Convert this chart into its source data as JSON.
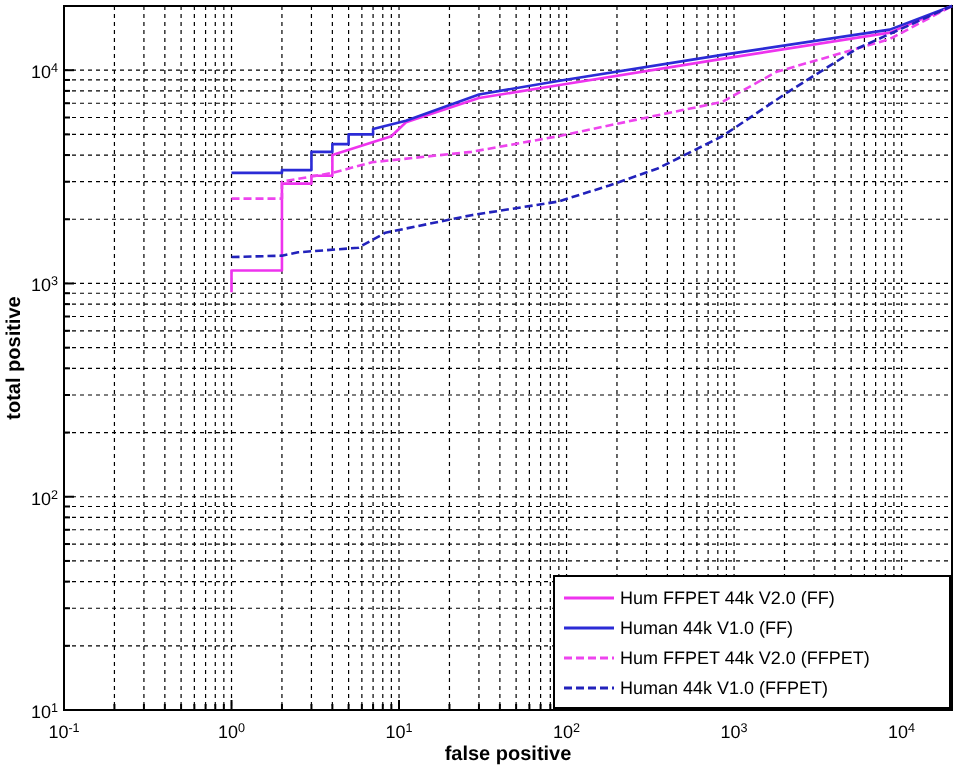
{
  "chart_data": {
    "type": "line",
    "xlabel": "false positive",
    "ylabel": "total positive",
    "log": "xy",
    "grid": true,
    "legend": "bottom right",
    "xlim": [
      0.1,
      20000
    ],
    "ylim": [
      10,
      20000
    ],
    "xticks": [
      {
        "value": 0.1,
        "label": "10$^{-1}$"
      },
      {
        "value": 0.2,
        "label": null
      },
      {
        "value": 0.3,
        "label": null
      },
      {
        "value": 0.4,
        "label": null
      },
      {
        "value": 0.5,
        "label": null
      },
      {
        "value": 0.6,
        "label": null
      },
      {
        "value": 0.7,
        "label": null
      },
      {
        "value": 0.8,
        "label": null
      },
      {
        "value": 0.9,
        "label": null
      },
      {
        "value": 1,
        "label": "10$^{0}$"
      },
      {
        "value": 2,
        "label": null
      },
      {
        "value": 3,
        "label": null
      },
      {
        "value": 4,
        "label": null
      },
      {
        "value": 5,
        "label": null
      },
      {
        "value": 6,
        "label": null
      },
      {
        "value": 7,
        "label": null
      },
      {
        "value": 8,
        "label": null
      },
      {
        "value": 9,
        "label": null
      },
      {
        "value": 10,
        "label": "10$^{1}$"
      },
      {
        "value": 20,
        "label": null
      },
      {
        "value": 30,
        "label": null
      },
      {
        "value": 40,
        "label": null
      },
      {
        "value": 50,
        "label": null
      },
      {
        "value": 60,
        "label": null
      },
      {
        "value": 70,
        "label": null
      },
      {
        "value": 80,
        "label": null
      },
      {
        "value": 90,
        "label": null
      },
      {
        "value": 100,
        "label": "10$^{2}$"
      },
      {
        "value": 200,
        "label": null
      },
      {
        "value": 300,
        "label": null
      },
      {
        "value": 400,
        "label": null
      },
      {
        "value": 500,
        "label": null
      },
      {
        "value": 600,
        "label": null
      },
      {
        "value": 700,
        "label": null
      },
      {
        "value": 800,
        "label": null
      },
      {
        "value": 900,
        "label": null
      },
      {
        "value": 1000,
        "label": "10$^{3}$"
      },
      {
        "value": 2000,
        "label": null
      },
      {
        "value": 3000,
        "label": null
      },
      {
        "value": 4000,
        "label": null
      },
      {
        "value": 5000,
        "label": null
      },
      {
        "value": 6000,
        "label": null
      },
      {
        "value": 7000,
        "label": null
      },
      {
        "value": 8000,
        "label": null
      },
      {
        "value": 9000,
        "label": null
      },
      {
        "value": 10000,
        "label": "10$^{4}$"
      }
    ],
    "yticks": [
      {
        "value": 10,
        "label": "10$^{1}$"
      },
      {
        "value": 20,
        "label": null
      },
      {
        "value": 30,
        "label": null
      },
      {
        "value": 40,
        "label": null
      },
      {
        "value": 50,
        "label": null
      },
      {
        "value": 60,
        "label": null
      },
      {
        "value": 70,
        "label": null
      },
      {
        "value": 80,
        "label": null
      },
      {
        "value": 90,
        "label": null
      },
      {
        "value": 100,
        "label": "10$^{2}$"
      },
      {
        "value": 200,
        "label": null
      },
      {
        "value": 300,
        "label": null
      },
      {
        "value": 400,
        "label": null
      },
      {
        "value": 500,
        "label": null
      },
      {
        "value": 600,
        "label": null
      },
      {
        "value": 700,
        "label": null
      },
      {
        "value": 800,
        "label": null
      },
      {
        "value": 900,
        "label": null
      },
      {
        "value": 1000,
        "label": "10$^{3}$"
      },
      {
        "value": 2000,
        "label": null
      },
      {
        "value": 3000,
        "label": null
      },
      {
        "value": 4000,
        "label": null
      },
      {
        "value": 5000,
        "label": null
      },
      {
        "value": 6000,
        "label": null
      },
      {
        "value": 7000,
        "label": null
      },
      {
        "value": 8000,
        "label": null
      },
      {
        "value": 9000,
        "label": null
      },
      {
        "value": 10000,
        "label": "10$^{4}$"
      }
    ],
    "series": [
      {
        "name": "Hum FFPET 44k V2.0 (FF)",
        "color": "#ee33ee",
        "line_style": "solid",
        "x": [
          1,
          1,
          2,
          2,
          3,
          3,
          4,
          4,
          9,
          11,
          30,
          89,
          850,
          8500,
          20000
        ],
        "values": [
          910,
          1150,
          1150,
          2940,
          2940,
          3200,
          3200,
          4000,
          4900,
          5700,
          7400,
          8500,
          11300,
          15000,
          20000
        ]
      },
      {
        "name": "Human 44k V1.0 (FF)",
        "color": "#2b2bd6",
        "line_style": "solid",
        "x": [
          1,
          2,
          2,
          3,
          3,
          4,
          4,
          5,
          5,
          7,
          7,
          11,
          30,
          89,
          850,
          8500,
          20000
        ],
        "values": [
          3300,
          3300,
          3400,
          3400,
          4140,
          4140,
          4500,
          4500,
          5000,
          5000,
          5300,
          5800,
          7700,
          8900,
          11800,
          15500,
          20000
        ]
      },
      {
        "name": "Hum FFPET 44k V2.0 (FFPET)",
        "color": "#ee44ee",
        "line_style": "dashed",
        "x": [
          1,
          2,
          2,
          4,
          6.9,
          27,
          89,
          350,
          850,
          1780,
          8500,
          20000
        ],
        "values": [
          2500,
          2500,
          3000,
          3300,
          3700,
          4140,
          4900,
          6150,
          7100,
          9800,
          14000,
          20000
        ]
      },
      {
        "name": "Human 44k V1.0 (FFPET)",
        "color": "#2222bb",
        "line_style": "dashed",
        "x": [
          1,
          2,
          2.5,
          5.7,
          8.3,
          27,
          89,
          180,
          350,
          850,
          2100,
          5400,
          20000
        ],
        "values": [
          1330,
          1350,
          1400,
          1470,
          1730,
          2090,
          2420,
          2880,
          3460,
          4900,
          7900,
          12600,
          20000
        ]
      }
    ]
  }
}
